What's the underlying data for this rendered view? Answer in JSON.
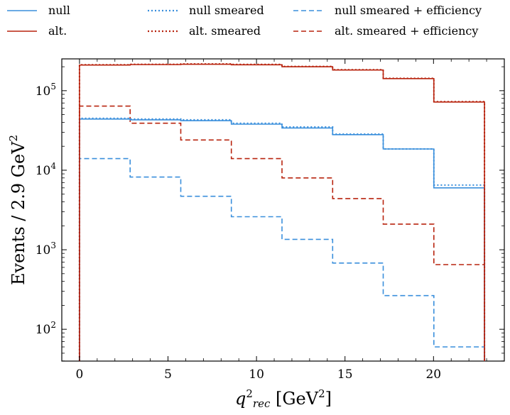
{
  "chart_data": {
    "type": "line",
    "xlabel": "q²rec [GeV²]",
    "ylabel": "Events / 2.9 GeV²",
    "xlim": [
      -1.0,
      24.0
    ],
    "ylim_log10": [
      1.6,
      5.4
    ],
    "log_y": true,
    "grid": false,
    "legend_position": "top",
    "x_ticks": [
      0,
      5,
      10,
      15,
      20
    ],
    "x_tick_labels": [
      "0",
      "5",
      "10",
      "15",
      "20"
    ],
    "y_ticks": [
      100,
      1000,
      10000,
      100000
    ],
    "y_tick_labels": [
      "10",
      "10",
      "10",
      "10"
    ],
    "y_tick_exponents": [
      "2",
      "3",
      "4",
      "5"
    ],
    "bin_edges": [
      0,
      2.86,
      5.72,
      8.58,
      11.44,
      14.3,
      17.16,
      20.02,
      22.88
    ],
    "series": [
      {
        "name": "null",
        "color": "#3a8fdc",
        "style": "solid",
        "values": [
          44000,
          44000,
          43000,
          42000,
          38000,
          34000,
          28000,
          18500,
          6000
        ]
      },
      {
        "name": "alt.",
        "color": "#b8240f",
        "style": "solid",
        "values": [
          210000,
          210000,
          213000,
          215000,
          212000,
          200000,
          182000,
          142000,
          72000
        ]
      },
      {
        "name": "null smeared",
        "color": "#3a8fdc",
        "style": "dotted",
        "values": [
          45000,
          45000,
          44000,
          43000,
          39000,
          35000,
          28500,
          18500,
          6500
        ]
      },
      {
        "name": "alt. smeared",
        "color": "#b8240f",
        "style": "dotted",
        "values": [
          212000,
          212000,
          215000,
          217000,
          214000,
          202000,
          184000,
          143000,
          73000
        ]
      },
      {
        "name": "null smeared + efficiency",
        "color": "#3a8fdc",
        "style": "dashed",
        "values": [
          14000,
          14000,
          8200,
          4700,
          2600,
          1350,
          680,
          265,
          60
        ]
      },
      {
        "name": "alt. smeared + efficiency",
        "color": "#b8240f",
        "style": "dashed",
        "values": [
          64000,
          64000,
          39000,
          24000,
          14000,
          8000,
          4400,
          2100,
          650
        ]
      }
    ]
  }
}
